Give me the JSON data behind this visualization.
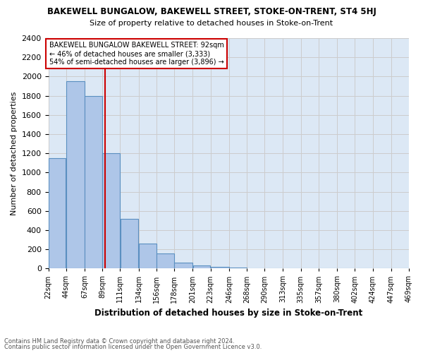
{
  "title": "BAKEWELL BUNGALOW, BAKEWELL STREET, STOKE-ON-TRENT, ST4 5HJ",
  "subtitle": "Size of property relative to detached houses in Stoke-on-Trent",
  "xlabel": "Distribution of detached houses by size in Stoke-on-Trent",
  "ylabel": "Number of detached properties",
  "footnote1": "Contains HM Land Registry data © Crown copyright and database right 2024.",
  "footnote2": "Contains public sector information licensed under the Open Government Licence v3.0.",
  "annotation_line1": "BAKEWELL BUNGALOW BAKEWELL STREET: 92sqm",
  "annotation_line2": "← 46% of detached houses are smaller (3,333)",
  "annotation_line3": "54% of semi-detached houses are larger (3,896) →",
  "property_size_sqm": 92,
  "bin_edges": [
    22,
    44,
    67,
    89,
    111,
    134,
    156,
    178,
    201,
    223,
    246,
    268,
    290,
    313,
    335,
    357,
    380,
    402,
    424,
    447,
    469
  ],
  "bin_labels": [
    "22sqm",
    "44sqm",
    "67sqm",
    "89sqm",
    "111sqm",
    "134sqm",
    "156sqm",
    "178sqm",
    "201sqm",
    "223sqm",
    "246sqm",
    "268sqm",
    "290sqm",
    "313sqm",
    "335sqm",
    "357sqm",
    "380sqm",
    "402sqm",
    "424sqm",
    "447sqm",
    "469sqm"
  ],
  "counts": [
    1150,
    1950,
    1800,
    1200,
    520,
    260,
    160,
    60,
    30,
    15,
    8,
    5,
    3,
    2,
    1,
    1,
    1,
    0,
    0,
    0
  ],
  "bar_color": "#aec6e8",
  "bar_edge_color": "#5a8fc0",
  "property_line_color": "#cc0000",
  "ylim": [
    0,
    2400
  ],
  "yticks": [
    0,
    200,
    400,
    600,
    800,
    1000,
    1200,
    1400,
    1600,
    1800,
    2000,
    2200,
    2400
  ],
  "grid_color": "#cccccc",
  "background_color": "#dce8f5",
  "annotation_box_color": "#ffffff",
  "annotation_box_edge": "#cc0000"
}
